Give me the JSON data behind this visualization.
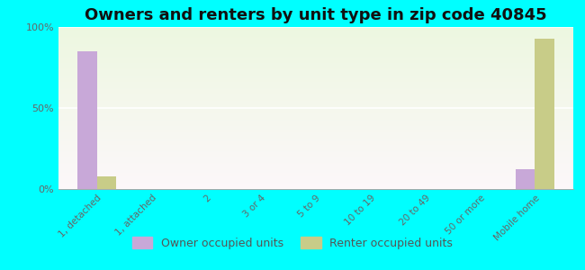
{
  "title": "Owners and renters by unit type in zip code 40845",
  "categories": [
    "1, detached",
    "1, attached",
    "2",
    "3 or 4",
    "5 to 9",
    "10 to 19",
    "20 to 49",
    "50 or more",
    "Mobile home"
  ],
  "owner_values": [
    85,
    0,
    0,
    0,
    0,
    0,
    0,
    0,
    12
  ],
  "renter_values": [
    8,
    0,
    0,
    0,
    0,
    0,
    0,
    0,
    93
  ],
  "owner_color": "#c8a8d8",
  "renter_color": "#c8cc88",
  "ylim": [
    0,
    100
  ],
  "yticks": [
    0,
    50,
    100
  ],
  "ytick_labels": [
    "0%",
    "50%",
    "100%"
  ],
  "background_color": "#00ffff",
  "title_fontsize": 13,
  "legend_labels": [
    "Owner occupied units",
    "Renter occupied units"
  ],
  "bar_width": 0.35
}
